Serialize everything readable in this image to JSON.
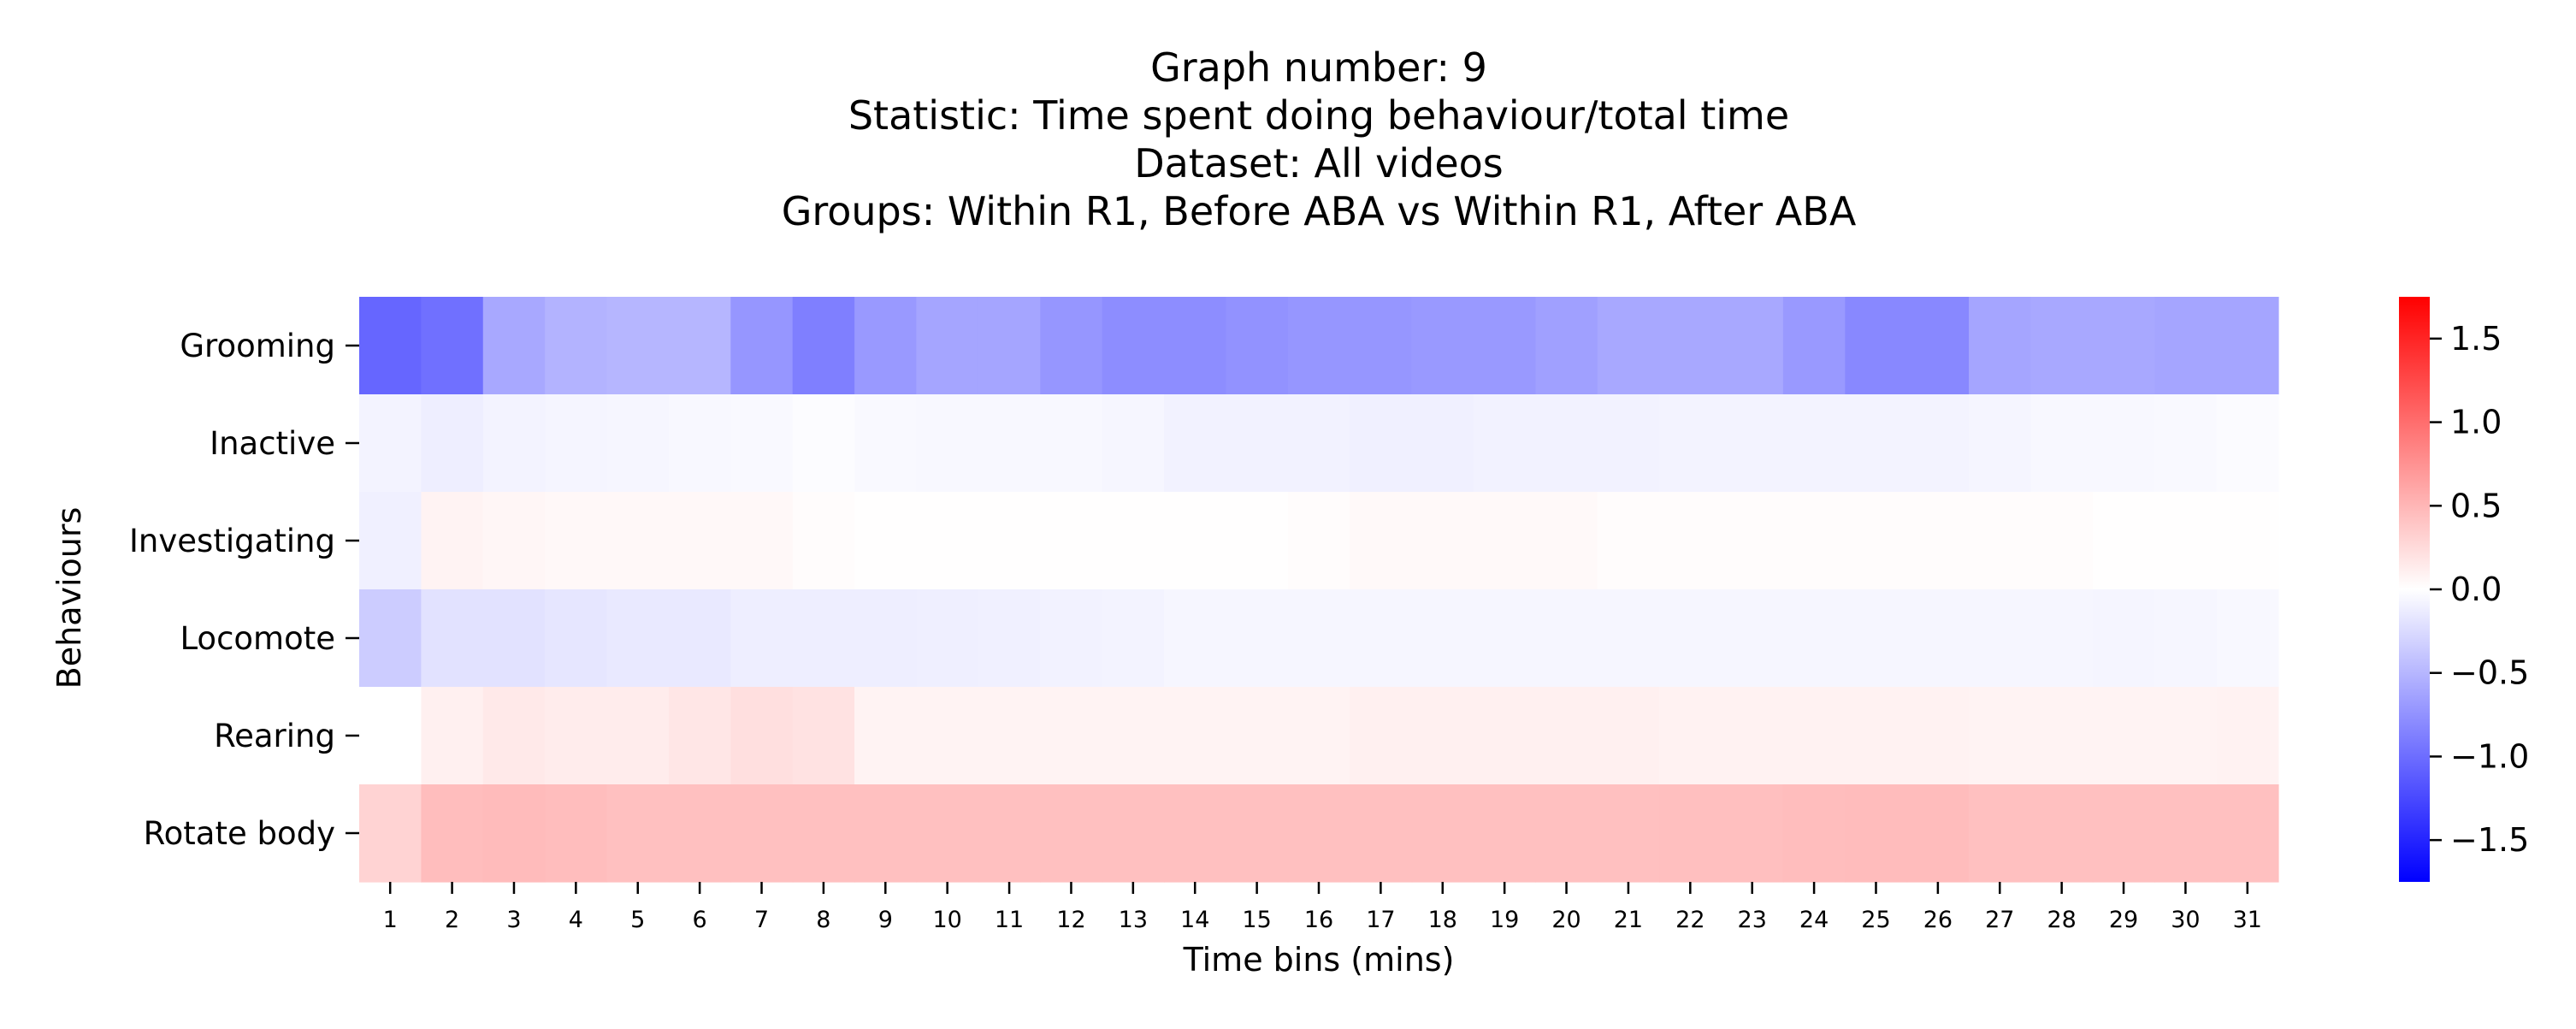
{
  "chart_data": {
    "type": "heatmap",
    "title_lines": [
      "Graph number: 9",
      "Statistic: Time spent doing behaviour/total time",
      "Dataset: All videos",
      "Groups: Within R1, Before ABA vs Within R1, After ABA"
    ],
    "xlabel": "Time bins (mins)",
    "ylabel": "Behaviours",
    "x_categories": [
      "1",
      "2",
      "3",
      "4",
      "5",
      "6",
      "7",
      "8",
      "9",
      "10",
      "11",
      "12",
      "13",
      "14",
      "15",
      "16",
      "17",
      "18",
      "19",
      "20",
      "21",
      "22",
      "23",
      "24",
      "25",
      "26",
      "27",
      "28",
      "29",
      "30",
      "31"
    ],
    "y_categories": [
      "Grooming",
      "Inactive",
      "Investigating",
      "Locomote",
      "Rearing",
      "Rotate body"
    ],
    "values": [
      [
        -1.05,
        -0.98,
        -0.6,
        -0.52,
        -0.5,
        -0.5,
        -0.72,
        -0.88,
        -0.7,
        -0.62,
        -0.62,
        -0.72,
        -0.78,
        -0.78,
        -0.75,
        -0.72,
        -0.72,
        -0.7,
        -0.7,
        -0.65,
        -0.6,
        -0.6,
        -0.6,
        -0.7,
        -0.82,
        -0.82,
        -0.62,
        -0.6,
        -0.6,
        -0.62,
        -0.62
      ],
      [
        -0.08,
        -0.12,
        -0.08,
        -0.07,
        -0.06,
        -0.05,
        -0.04,
        -0.02,
        -0.04,
        -0.05,
        -0.05,
        -0.05,
        -0.06,
        -0.09,
        -0.09,
        -0.09,
        -0.1,
        -0.1,
        -0.09,
        -0.09,
        -0.09,
        -0.08,
        -0.08,
        -0.08,
        -0.08,
        -0.08,
        -0.07,
        -0.05,
        -0.05,
        -0.04,
        -0.03
      ],
      [
        -0.1,
        0.08,
        0.06,
        0.05,
        0.05,
        0.05,
        0.05,
        0.02,
        0.01,
        0.01,
        0.01,
        0.01,
        0.01,
        0.01,
        0.01,
        0.02,
        0.04,
        0.04,
        0.04,
        0.04,
        0.02,
        0.02,
        0.02,
        0.02,
        0.02,
        0.02,
        0.02,
        0.02,
        0.01,
        0.01,
        0.01
      ],
      [
        -0.35,
        -0.2,
        -0.2,
        -0.17,
        -0.15,
        -0.15,
        -0.12,
        -0.12,
        -0.12,
        -0.11,
        -0.1,
        -0.09,
        -0.08,
        -0.06,
        -0.06,
        -0.06,
        -0.06,
        -0.06,
        -0.06,
        -0.06,
        -0.06,
        -0.06,
        -0.06,
        -0.06,
        -0.06,
        -0.06,
        -0.06,
        -0.06,
        -0.07,
        -0.06,
        -0.05
      ],
      [
        0.0,
        0.1,
        0.15,
        0.13,
        0.13,
        0.17,
        0.22,
        0.2,
        0.08,
        0.08,
        0.08,
        0.08,
        0.08,
        0.08,
        0.08,
        0.08,
        0.1,
        0.1,
        0.1,
        0.1,
        0.1,
        0.09,
        0.09,
        0.09,
        0.09,
        0.09,
        0.08,
        0.08,
        0.08,
        0.08,
        0.09
      ],
      [
        0.3,
        0.45,
        0.47,
        0.45,
        0.43,
        0.43,
        0.43,
        0.43,
        0.43,
        0.43,
        0.43,
        0.43,
        0.43,
        0.43,
        0.43,
        0.43,
        0.43,
        0.43,
        0.43,
        0.43,
        0.43,
        0.44,
        0.44,
        0.45,
        0.46,
        0.46,
        0.43,
        0.43,
        0.43,
        0.43,
        0.43
      ]
    ],
    "colorbar": {
      "range": [
        -1.75,
        1.75
      ],
      "ticks": [
        "1.5",
        "1.0",
        "0.5",
        "0.0",
        "−0.5",
        "−1.0",
        "−1.5"
      ],
      "tick_values": [
        1.5,
        1.0,
        0.5,
        0.0,
        -0.5,
        -1.0,
        -1.5
      ],
      "low_color": "#0000ff",
      "mid_color": "#ffffff",
      "high_color": "#ff0000"
    },
    "grid": false
  }
}
